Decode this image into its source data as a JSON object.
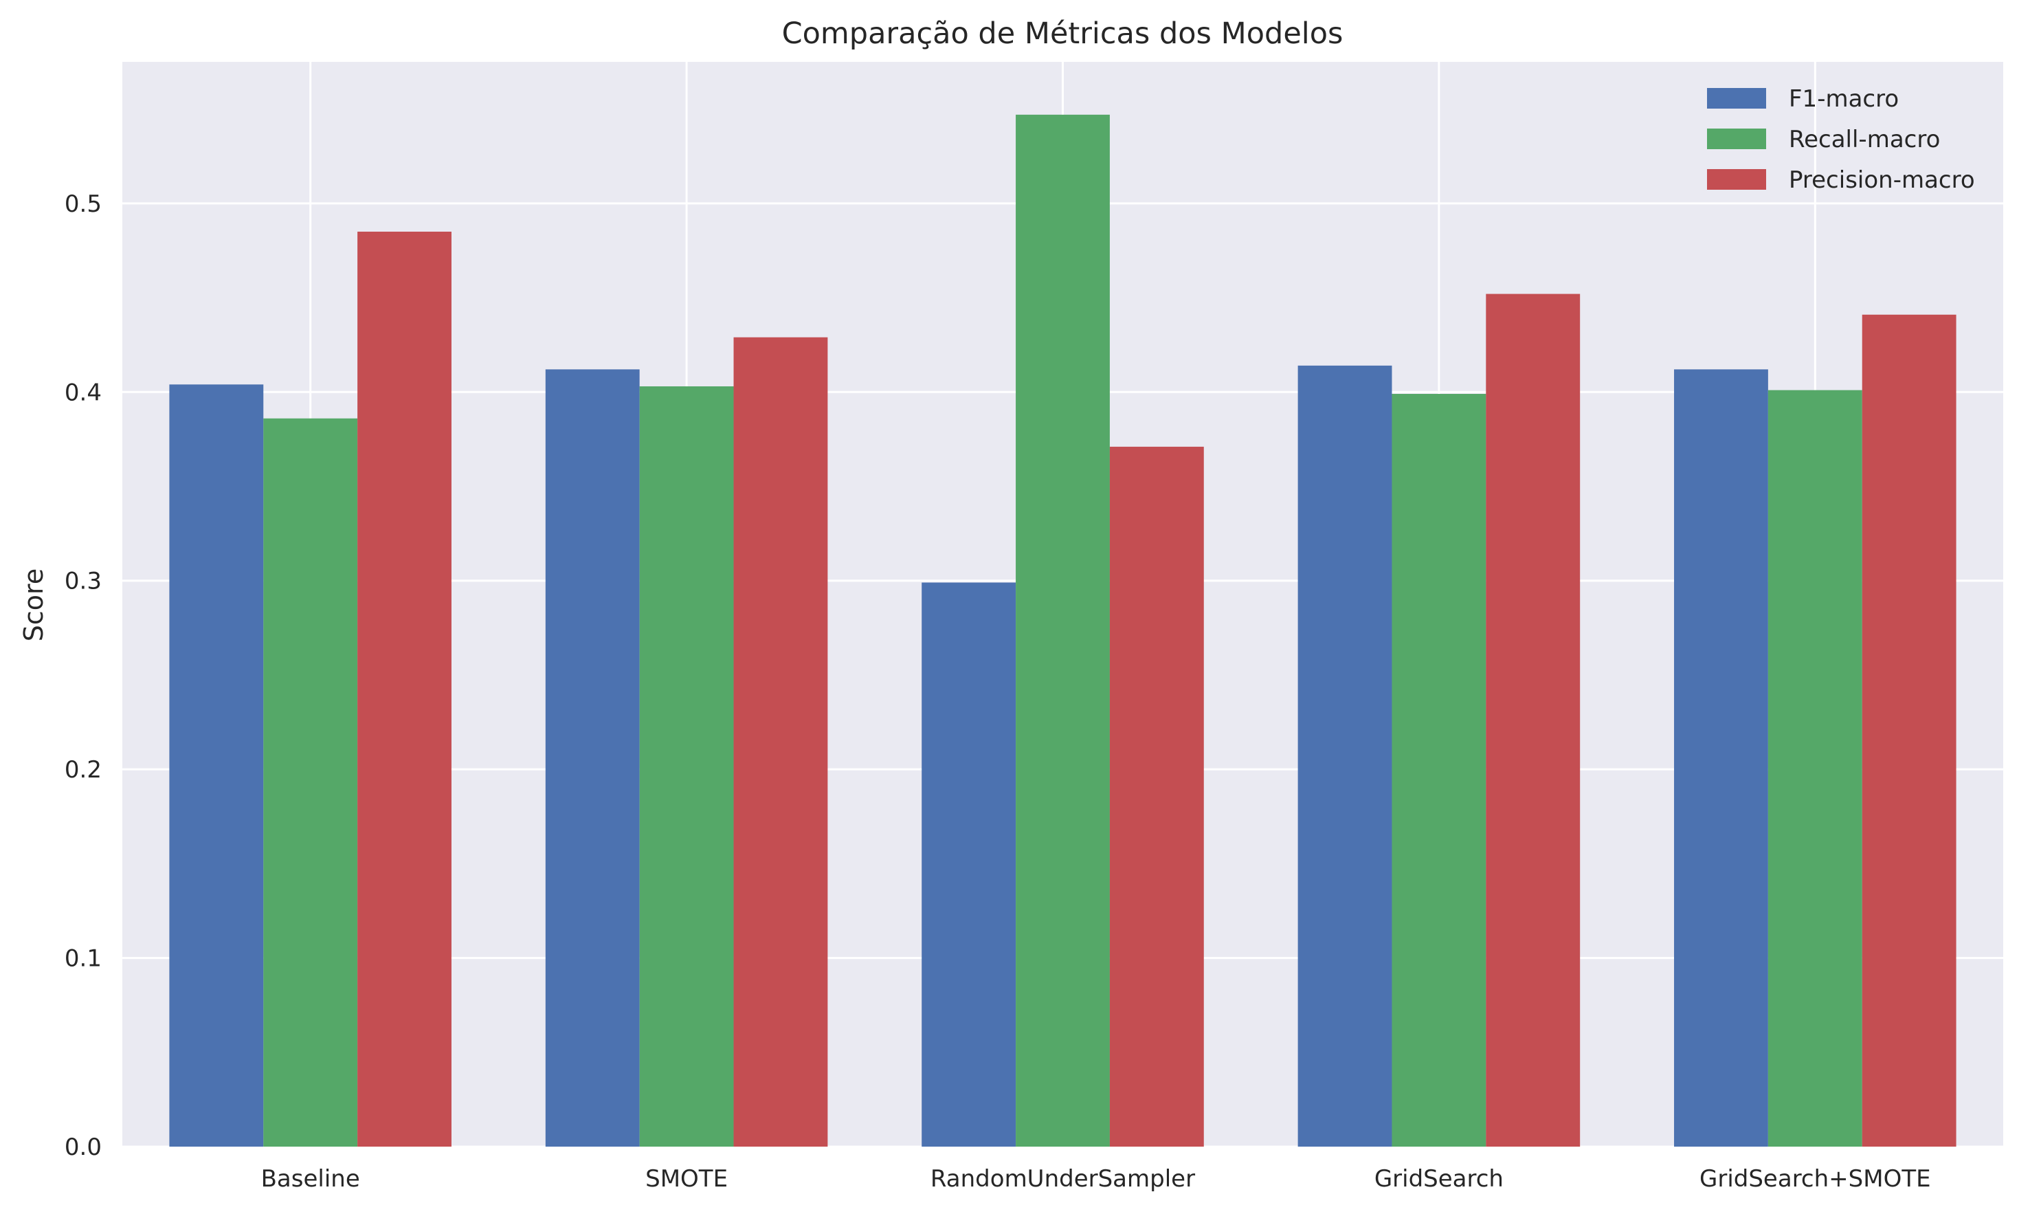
{
  "chart_data": {
    "type": "bar",
    "title": "Comparação de Métricas dos Modelos",
    "xlabel": "",
    "ylabel": "Score",
    "categories": [
      "Baseline",
      "SMOTE",
      "RandomUnderSampler",
      "GridSearch",
      "GridSearch+SMOTE"
    ],
    "series": [
      {
        "name": "F1-macro",
        "color": "#4c72b0",
        "values": [
          0.404,
          0.412,
          0.299,
          0.414,
          0.412
        ]
      },
      {
        "name": "Recall-macro",
        "color": "#55a868",
        "values": [
          0.386,
          0.403,
          0.547,
          0.399,
          0.401
        ]
      },
      {
        "name": "Precision-macro",
        "color": "#c44e52",
        "values": [
          0.485,
          0.429,
          0.371,
          0.452,
          0.441
        ]
      }
    ],
    "ylim": [
      0,
      0.575
    ],
    "yticks": [
      "0.0",
      "0.1",
      "0.2",
      "0.3",
      "0.4",
      "0.5"
    ],
    "grid": true,
    "legend_position": "top-right",
    "background": "#eaeaf2"
  }
}
